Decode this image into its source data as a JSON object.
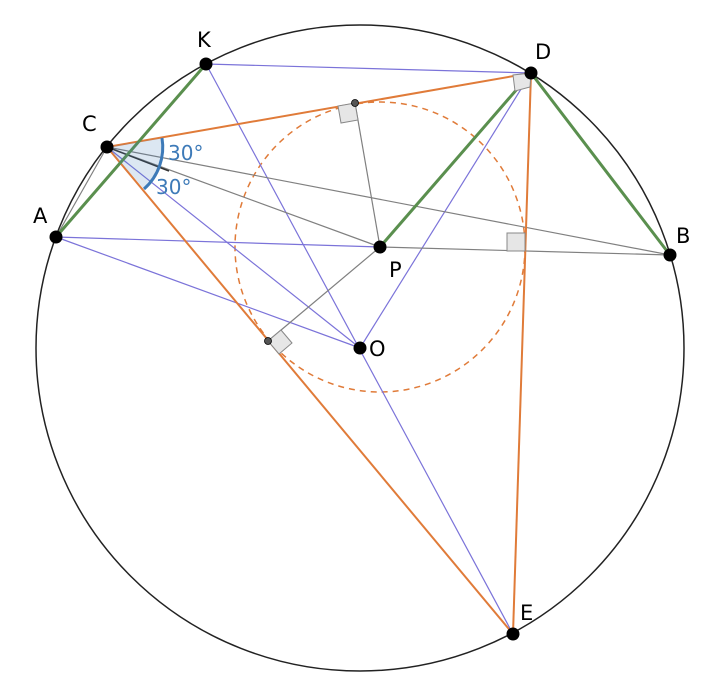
{
  "colors": {
    "circle": "#222222",
    "blue": "#7b73d9",
    "orange": "#e07b39",
    "green": "#5a8f4e",
    "gray": "#808080",
    "angle": "#3d7ab8",
    "right_angle_fill": "#e6e6e6"
  },
  "points": [
    {
      "id": "A",
      "label": "A"
    },
    {
      "id": "K",
      "label": "K"
    },
    {
      "id": "C",
      "label": "C"
    },
    {
      "id": "D",
      "label": "D"
    },
    {
      "id": "B",
      "label": "B"
    },
    {
      "id": "P",
      "label": "P"
    },
    {
      "id": "O",
      "label": "O"
    },
    {
      "id": "E",
      "label": "E"
    }
  ],
  "angles": [
    {
      "id": "upper",
      "label": "30°"
    },
    {
      "id": "lower",
      "label": "30°"
    }
  ]
}
